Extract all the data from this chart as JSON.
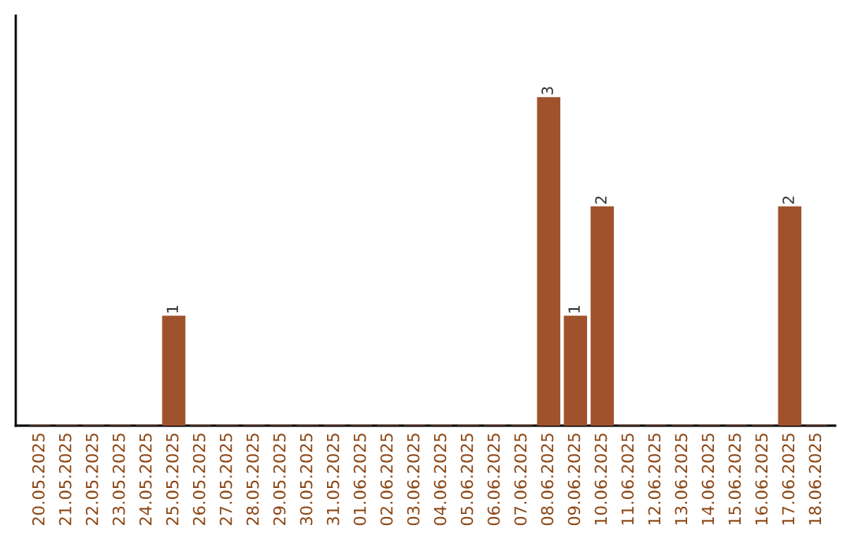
{
  "chart_data": {
    "type": "bar",
    "categories": [
      "20.05.2025",
      "21.05.2025",
      "22.05.2025",
      "23.05.2025",
      "24.05.2025",
      "25.05.2025",
      "26.05.2025",
      "27.05.2025",
      "28.05.2025",
      "29.05.2025",
      "30.05.2025",
      "31.05.2025",
      "01.06.2025",
      "02.06.2025",
      "03.06.2025",
      "04.06.2025",
      "05.06.2025",
      "06.06.2025",
      "07.06.2025",
      "08.06.2025",
      "09.06.2025",
      "10.06.2025",
      "11.06.2025",
      "12.06.2025",
      "13.06.2025",
      "14.06.2025",
      "15.06.2025",
      "16.06.2025",
      "17.06.2025",
      "18.06.2025"
    ],
    "values": [
      0,
      0,
      0,
      0,
      0,
      1,
      0,
      0,
      0,
      0,
      0,
      0,
      0,
      0,
      0,
      0,
      0,
      0,
      0,
      3,
      1,
      2,
      0,
      0,
      0,
      0,
      0,
      0,
      2,
      0
    ],
    "value_labels": [
      null,
      null,
      null,
      null,
      null,
      "1",
      null,
      null,
      null,
      null,
      null,
      null,
      null,
      null,
      null,
      null,
      null,
      null,
      null,
      "3",
      "1",
      "2",
      null,
      null,
      null,
      null,
      null,
      null,
      "2",
      null
    ],
    "color": "#a0522d",
    "grid": false,
    "legend": false
  }
}
